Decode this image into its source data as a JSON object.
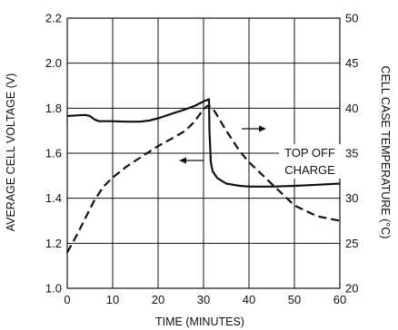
{
  "chart_data": {
    "type": "line",
    "xlabel": "TIME (MINUTES)",
    "ylabel_left": "AVERAGE CELL VOLTAGE (V)",
    "ylabel_right": "CELL CASE TEMPERATURE (°C)",
    "xlim": [
      0,
      60
    ],
    "ylim_left": [
      1.0,
      2.2
    ],
    "ylim_right": [
      20,
      50
    ],
    "x_ticks": [
      "0",
      "10",
      "20",
      "30",
      "40",
      "50",
      "60"
    ],
    "y_left_ticks": [
      "1.0",
      "1.2",
      "1.4",
      "1.6",
      "1.8",
      "2.0",
      "2.2"
    ],
    "y_right_ticks": [
      "20",
      "25",
      "30",
      "35",
      "40",
      "45",
      "50"
    ],
    "grid": true,
    "annotation": [
      "TOP OFF",
      "CHARGE"
    ],
    "series": [
      {
        "axis": "left",
        "style": "solid",
        "x": [
          0,
          2,
          4,
          5,
          6,
          7,
          8,
          10,
          13,
          16,
          18,
          20,
          23,
          26,
          28,
          30,
          31.2,
          31.3,
          31.6,
          32,
          33,
          35,
          38,
          40,
          45,
          50,
          55,
          60
        ],
        "y": [
          1.765,
          1.768,
          1.77,
          1.765,
          1.75,
          1.742,
          1.742,
          1.742,
          1.74,
          1.74,
          1.745,
          1.755,
          1.775,
          1.795,
          1.81,
          1.83,
          1.84,
          1.7,
          1.56,
          1.52,
          1.49,
          1.465,
          1.455,
          1.452,
          1.452,
          1.455,
          1.46,
          1.465
        ]
      },
      {
        "axis": "right",
        "style": "dashed",
        "x": [
          0,
          2,
          4,
          6,
          8,
          10,
          13,
          16,
          20,
          24,
          26,
          28,
          29,
          30,
          31,
          32,
          33,
          35,
          38,
          40,
          45,
          50,
          55,
          60
        ],
        "y": [
          24,
          25.8,
          27.8,
          29.8,
          31.3,
          32.3,
          33.5,
          34.5,
          35.8,
          36.9,
          37.5,
          38.5,
          39.2,
          39.9,
          40.3,
          40.0,
          39.2,
          37.5,
          35.2,
          34.0,
          31.6,
          29.2,
          28.0,
          27.5
        ]
      }
    ]
  }
}
